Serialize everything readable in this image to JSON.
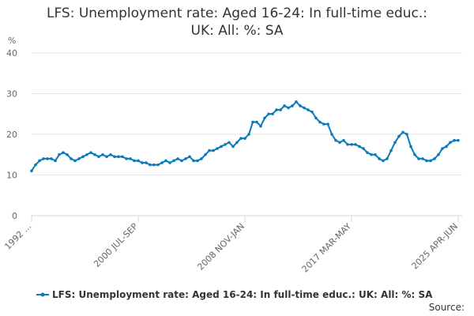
{
  "chart_data": {
    "type": "line",
    "title": "LFS: Unemployment rate: Aged 16-24: In full-time educ.: UK: All: %: SA",
    "y_label": "%",
    "source": "Source:",
    "categories": [
      "1992 ...",
      null,
      null,
      null,
      null,
      null,
      null,
      null,
      null,
      null,
      null,
      null,
      null,
      null,
      null,
      null,
      null,
      null,
      null,
      null,
      null,
      null,
      null,
      null,
      null,
      null,
      null,
      "2000 JUL-SEP",
      null,
      null,
      null,
      null,
      null,
      null,
      null,
      null,
      null,
      null,
      null,
      null,
      null,
      null,
      null,
      null,
      null,
      null,
      null,
      null,
      null,
      null,
      null,
      null,
      null,
      null,
      "2008 NOV-JAN",
      null,
      null,
      null,
      null,
      null,
      null,
      null,
      null,
      null,
      null,
      null,
      null,
      null,
      null,
      null,
      null,
      null,
      null,
      null,
      null,
      null,
      null,
      null,
      null,
      null,
      null,
      "2017 MAR-MAY",
      null,
      null,
      null,
      null,
      null,
      null,
      null,
      null,
      null,
      null,
      null,
      null,
      null,
      null,
      null,
      null,
      null,
      null,
      null,
      null,
      null,
      null,
      null,
      null,
      null,
      null,
      "2025 APR-JUN"
    ],
    "series": [
      {
        "name": "LFS: Unemployment rate: Aged 16-24: In full-time educ.: UK: All: %: SA",
        "color": "#0a7ab8",
        "values": [
          11,
          12.5,
          13.5,
          14,
          14,
          14,
          13.5,
          15,
          15.5,
          15,
          14,
          13.5,
          14,
          14.5,
          15,
          15.5,
          15,
          14.5,
          15,
          14.5,
          15,
          14.5,
          14.5,
          14.5,
          14,
          14,
          13.5,
          13.5,
          13,
          13,
          12.5,
          12.5,
          12.5,
          13,
          13.5,
          13,
          13.5,
          14,
          13.5,
          14,
          14.5,
          13.5,
          13.5,
          14,
          15,
          16,
          16,
          16.5,
          17,
          17.5,
          18,
          17,
          18,
          19,
          19,
          20,
          23,
          23,
          22,
          24,
          25,
          25,
          26,
          26,
          27,
          26.5,
          27,
          28,
          27,
          26.5,
          26,
          25.5,
          24,
          23,
          22.5,
          22.5,
          20,
          18.5,
          18,
          18.5,
          17.5,
          17.5,
          17.5,
          17,
          16.5,
          15.5,
          15,
          15,
          14,
          13.5,
          14,
          16,
          18,
          19.5,
          20.5,
          20,
          17,
          15,
          14,
          14,
          13.5,
          13.5,
          14,
          15,
          16.5,
          17,
          18,
          18.5,
          18.5
        ]
      }
    ],
    "ylim": [
      0,
      40
    ],
    "yticks": [
      0,
      10,
      20,
      30,
      40
    ],
    "grid": true
  }
}
